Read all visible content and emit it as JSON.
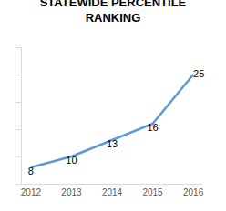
{
  "chart_data": {
    "type": "line",
    "title": "STATEWIDE PERCENTILE RANKING",
    "categories": [
      "2012",
      "2013",
      "2014",
      "2015",
      "2016"
    ],
    "values": [
      8,
      10,
      13,
      16,
      25
    ],
    "color": "#5b9bd5",
    "ylim": [
      5,
      30
    ],
    "yticks": [
      5,
      10,
      15,
      20,
      25,
      30
    ],
    "grid": false,
    "data_labels": true,
    "tick_labels": "x"
  }
}
